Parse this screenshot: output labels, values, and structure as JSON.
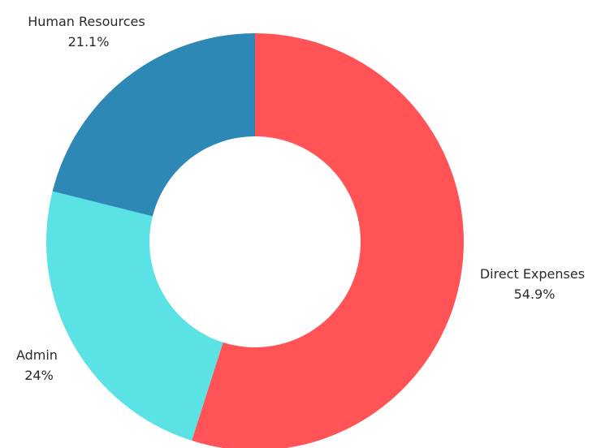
{
  "chart_data": {
    "type": "pie",
    "variant": "donut",
    "legend": "none",
    "slices": [
      {
        "label": "Direct Expenses",
        "value": 54.9,
        "value_label": "54.9%",
        "color": "#ff5356"
      },
      {
        "label": "Admin",
        "value": 24,
        "value_label": "24%",
        "color": "#5ae2e4"
      },
      {
        "label": "Human Resources",
        "value": 21.1,
        "value_label": "21.1%",
        "color": "#2d88b6"
      }
    ]
  }
}
